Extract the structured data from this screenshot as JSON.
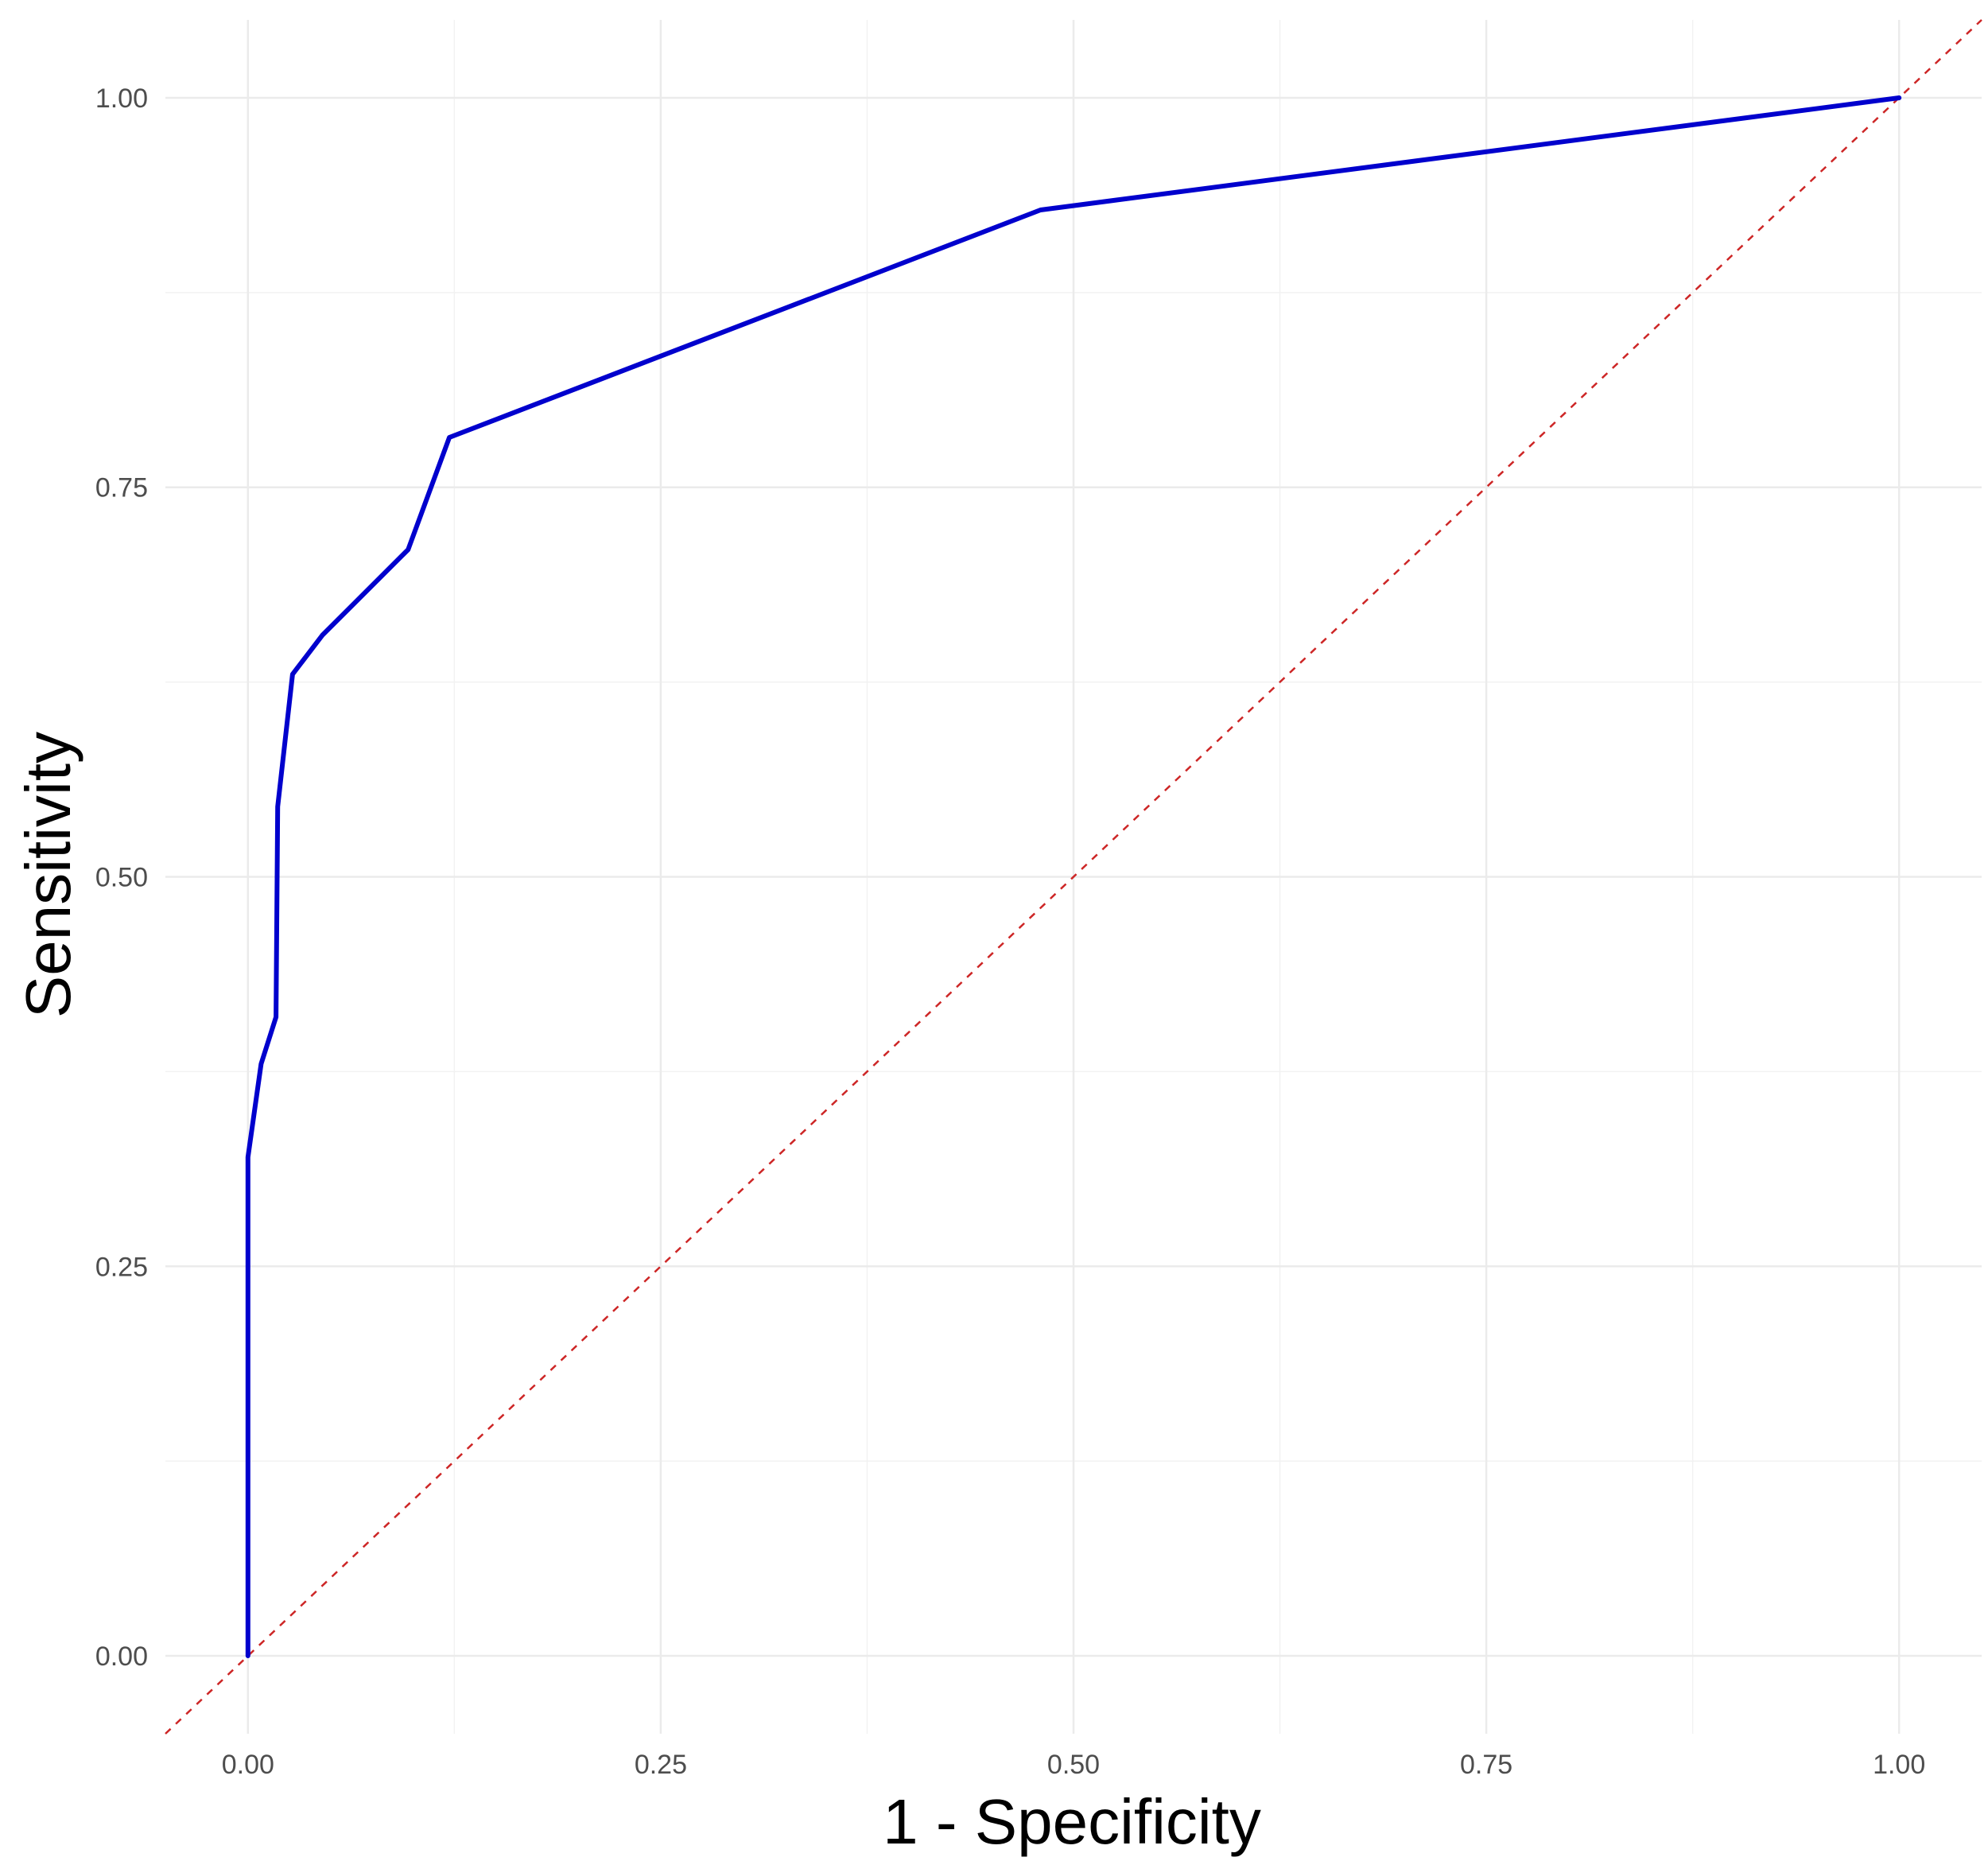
{
  "chart_data": {
    "type": "line",
    "title": "",
    "xlabel": "1 - Specificity",
    "ylabel": "Sensitivity",
    "xlim": [
      -0.05,
      1.05
    ],
    "ylim": [
      -0.05,
      1.05
    ],
    "x_ticks": [
      "0.00",
      "0.25",
      "0.50",
      "0.75",
      "1.00"
    ],
    "y_ticks": [
      "0.00",
      "0.25",
      "0.50",
      "0.75",
      "1.00"
    ],
    "x_tick_values": [
      0,
      0.25,
      0.5,
      0.75,
      1.0
    ],
    "y_tick_values": [
      0,
      0.25,
      0.5,
      0.75,
      1.0
    ],
    "grid": true,
    "legend": "none",
    "series": [
      {
        "style": "solid",
        "color": "#0000cd",
        "x": [
          0.0,
          0.0,
          0.008,
          0.017,
          0.018,
          0.027,
          0.045,
          0.097,
          0.122,
          0.48,
          1.0
        ],
        "y": [
          0.0,
          0.32,
          0.38,
          0.41,
          0.545,
          0.63,
          0.655,
          0.71,
          0.782,
          0.928,
          1.0
        ]
      },
      {
        "style": "dashed",
        "color": "#cd2626",
        "x": [
          -0.05,
          1.05
        ],
        "y": [
          -0.05,
          1.05
        ]
      }
    ]
  }
}
